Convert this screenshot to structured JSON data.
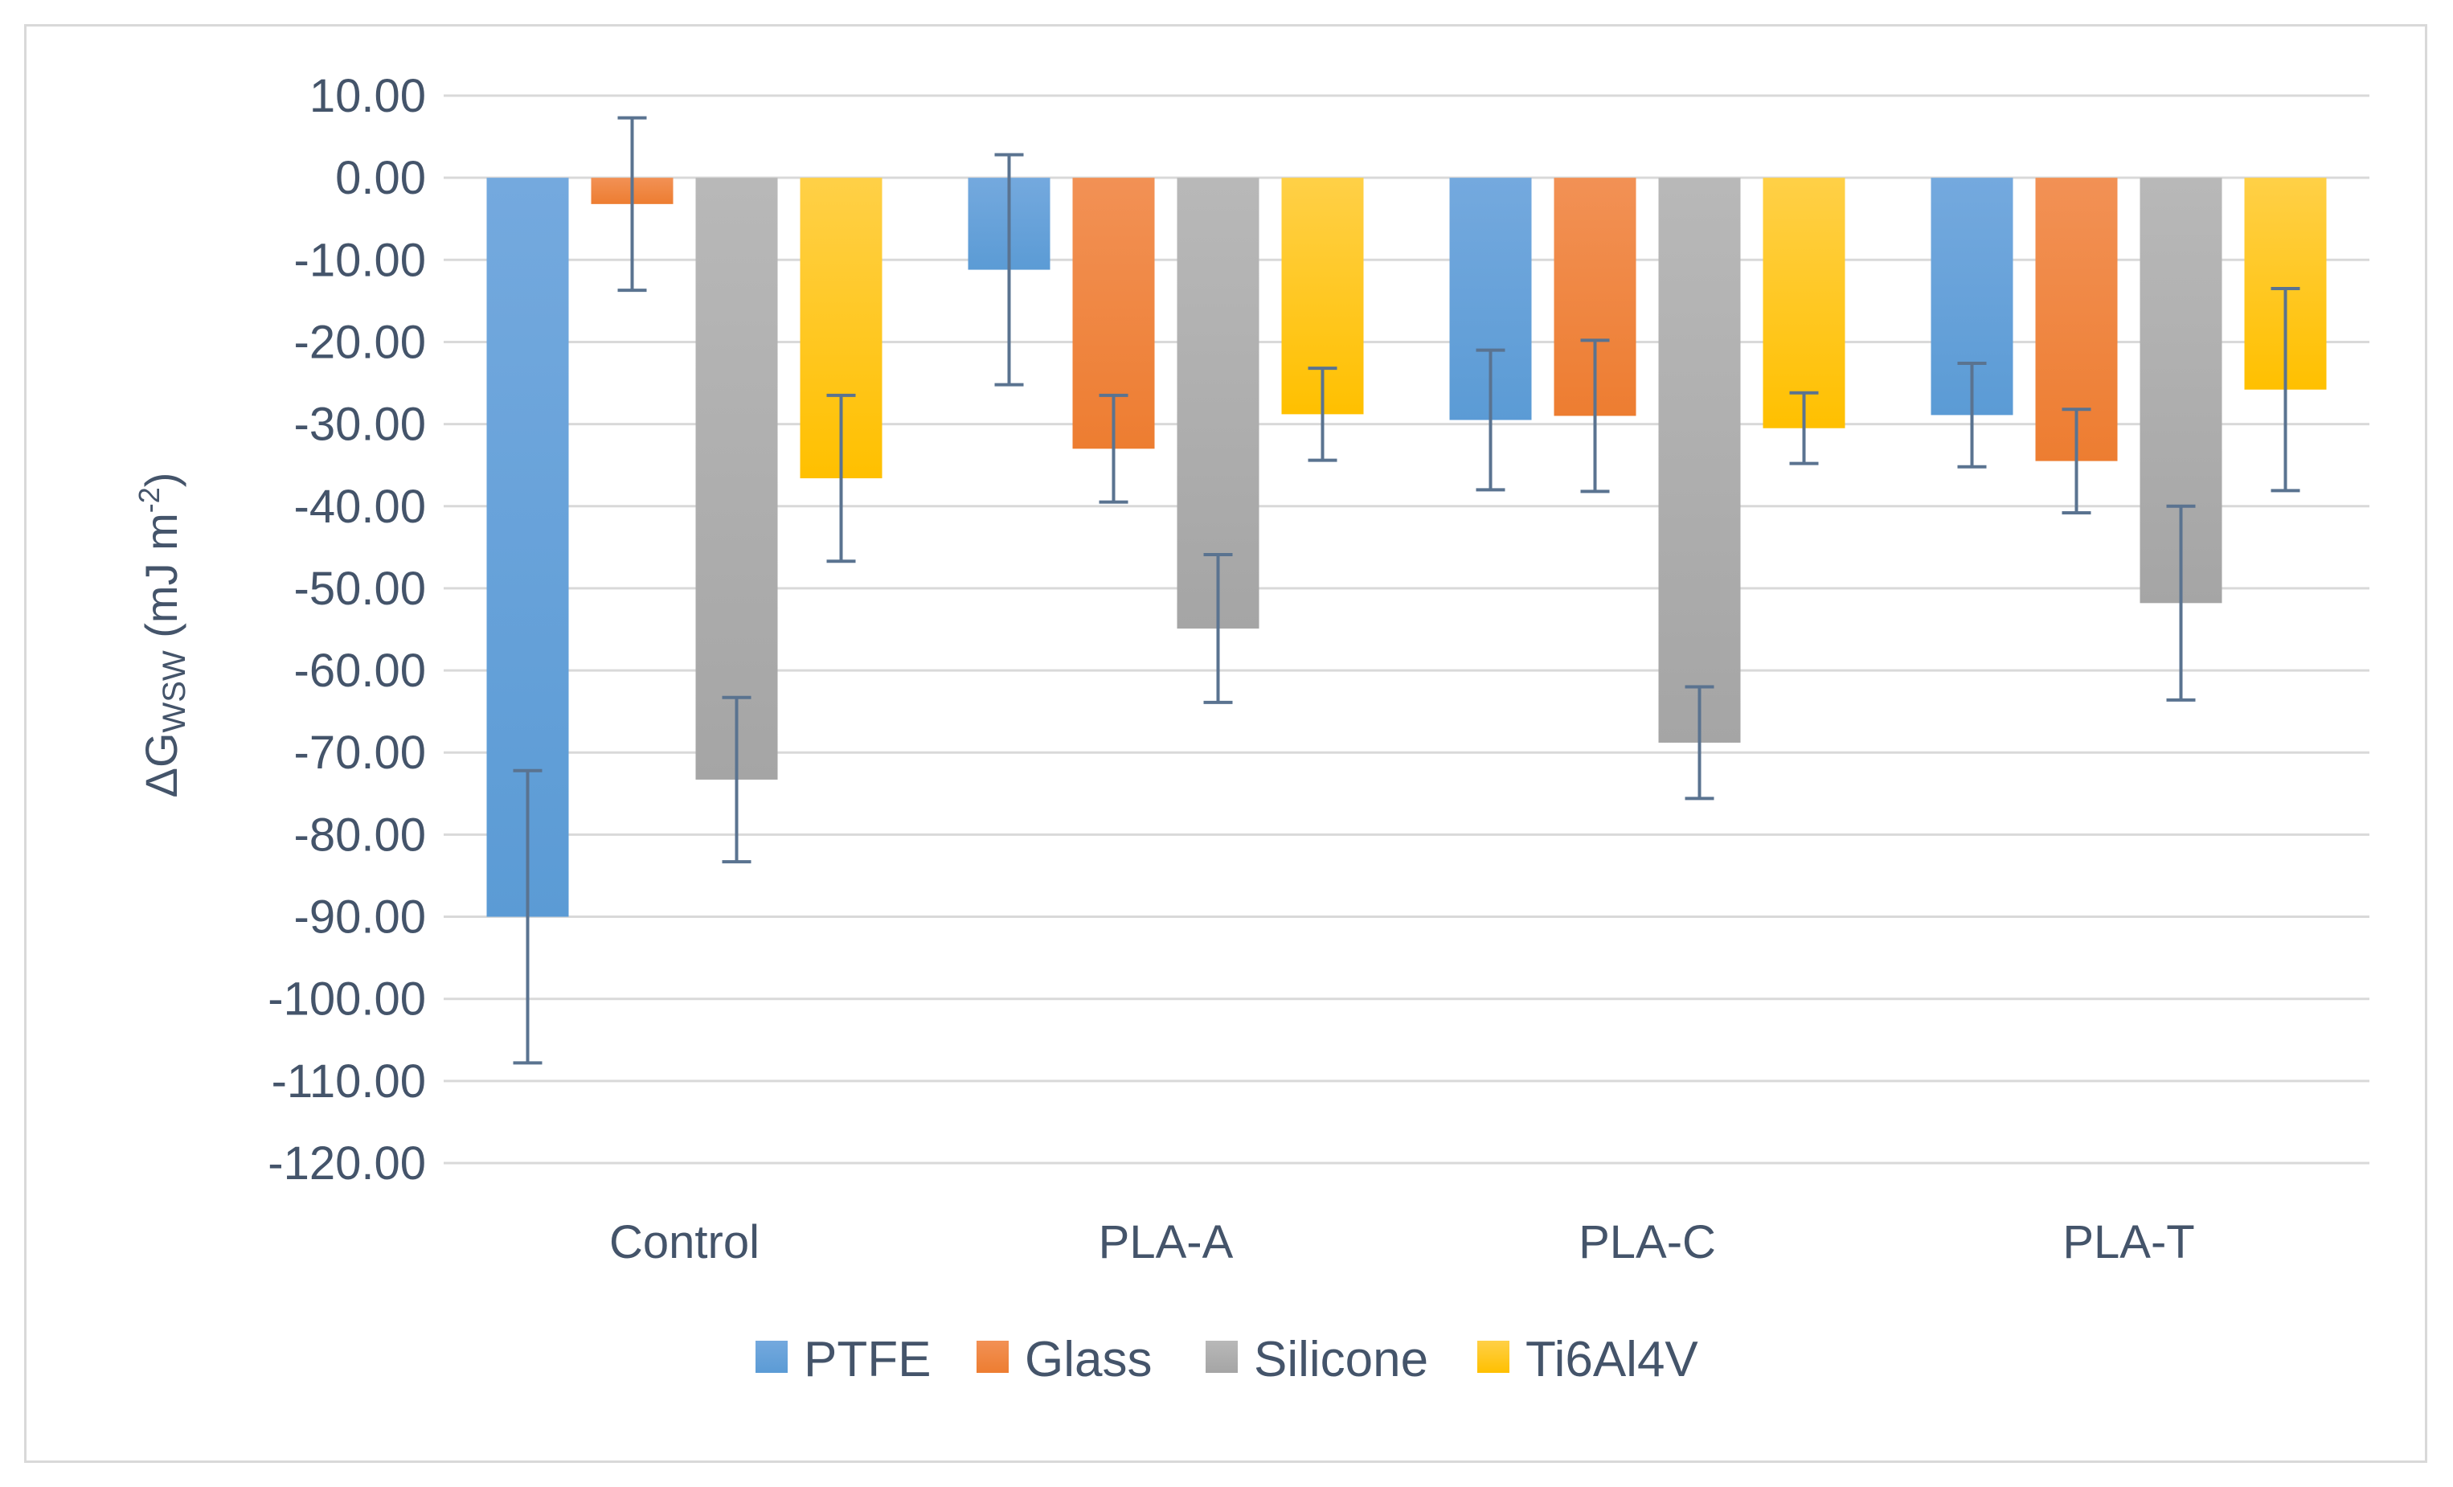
{
  "chart_data": {
    "type": "bar",
    "title": "",
    "xlabel": "",
    "ylabel": {
      "prefix": "ΔG",
      "subscript": "WSW",
      "units_main": " (mJ m",
      "units_sup": "-2",
      "units_close": ")"
    },
    "categories": [
      "Control",
      "PLA-A",
      "PLA-C",
      "PLA-T"
    ],
    "ylim": [
      -120,
      10
    ],
    "ytick_step": 10,
    "ytick_labels": [
      "10.00",
      "0.00",
      "-10.00",
      "-20.00",
      "-30.00",
      "-40.00",
      "-50.00",
      "-60.00",
      "-70.00",
      "-80.00",
      "-90.00",
      "-100.00",
      "-110.00",
      "-120.00"
    ],
    "grid": true,
    "legend_position": "bottom",
    "series": [
      {
        "name": "PTFE",
        "color": "#5b9bd5",
        "color_light": "#74a9de",
        "values": [
          -90.0,
          -11.2,
          -29.5,
          -28.9
        ],
        "errors": [
          17.8,
          14.0,
          8.5,
          6.3
        ]
      },
      {
        "name": "Glass",
        "color": "#ed7d31",
        "color_light": "#f29155",
        "values": [
          -3.2,
          -33.0,
          -29.0,
          -34.5
        ],
        "errors": [
          10.5,
          6.5,
          9.2,
          6.3
        ]
      },
      {
        "name": "Silicone",
        "color": "#a5a5a5",
        "color_light": "#b8b8b8",
        "values": [
          -73.3,
          -54.9,
          -68.8,
          -51.8
        ],
        "errors": [
          10.0,
          9.0,
          6.8,
          11.8
        ]
      },
      {
        "name": "Ti6Al4V",
        "color": "#ffc000",
        "color_light": "#ffd047",
        "values": [
          -36.6,
          -28.8,
          -30.5,
          -25.8
        ],
        "errors": [
          10.1,
          5.6,
          4.3,
          12.3
        ]
      }
    ],
    "colors": {
      "grid": "#d9d9d9",
      "error_bar": "#5a7390",
      "text": "#44546a"
    }
  }
}
